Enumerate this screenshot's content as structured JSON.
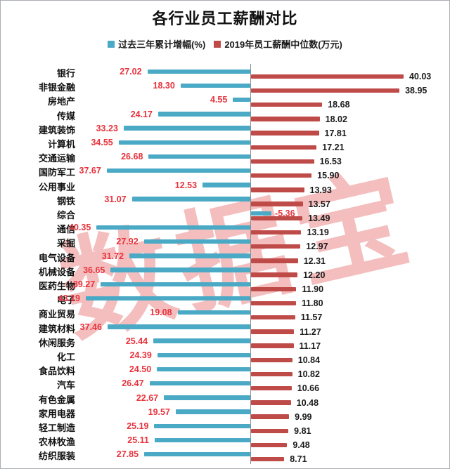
{
  "title": "各行业员工薪酬对比",
  "watermark": "数据宝",
  "legend": {
    "items": [
      {
        "label": "过去三年累计增幅(%)",
        "color": "#4aa9c5"
      },
      {
        "label": "2019年员工薪酬中位数(万元)",
        "color": "#bf4b48"
      }
    ]
  },
  "chart_data": {
    "type": "bar",
    "orientation": "horizontal-diverging",
    "title": "各行业员工薪酬对比",
    "legend_position": "top",
    "grid": false,
    "zero_axis_line": true,
    "value_label_colors": {
      "growth": "#e8323c",
      "salary": "#1a1a1a"
    },
    "categories": [
      "银行",
      "非银金融",
      "房地产",
      "传媒",
      "建筑装饰",
      "计算机",
      "交通运输",
      "国防军工",
      "公用事业",
      "钢铁",
      "综合",
      "通信",
      "采掘",
      "电气设备",
      "机械设备",
      "医药生物",
      "电子",
      "商业贸易",
      "建筑材料",
      "休闲服务",
      "化工",
      "食品饮料",
      "汽车",
      "有色金属",
      "家用电器",
      "轻工制造",
      "农林牧渔",
      "纺织服装"
    ],
    "series": [
      {
        "name": "过去三年累计增幅(%)",
        "color": "#4aa9c5",
        "direction": "left",
        "values": [
          27.02,
          18.3,
          4.55,
          24.17,
          33.23,
          34.55,
          26.68,
          37.67,
          12.53,
          31.07,
          -5.36,
          40.35,
          27.92,
          31.72,
          36.65,
          39.27,
          43.19,
          19.08,
          37.46,
          25.44,
          24.39,
          24.5,
          26.47,
          22.67,
          19.57,
          25.19,
          25.11,
          27.85
        ]
      },
      {
        "name": "2019年员工薪酬中位数(万元)",
        "color": "#bf4b48",
        "direction": "right",
        "values": [
          40.03,
          38.95,
          18.68,
          18.02,
          17.81,
          17.21,
          16.53,
          15.9,
          13.93,
          13.57,
          13.49,
          13.19,
          12.97,
          12.31,
          12.2,
          11.9,
          11.8,
          11.57,
          11.27,
          11.17,
          10.84,
          10.82,
          10.66,
          10.48,
          9.99,
          9.81,
          9.48,
          8.71
        ]
      }
    ]
  }
}
